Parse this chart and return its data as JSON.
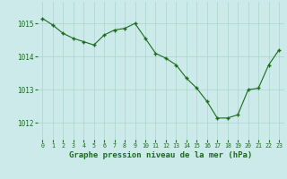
{
  "x": [
    0,
    1,
    2,
    3,
    4,
    5,
    6,
    7,
    8,
    9,
    10,
    11,
    12,
    13,
    14,
    15,
    16,
    17,
    18,
    19,
    20,
    21,
    22,
    23
  ],
  "y": [
    1015.15,
    1014.95,
    1014.7,
    1014.55,
    1014.45,
    1014.35,
    1014.65,
    1014.8,
    1014.85,
    1015.0,
    1014.55,
    1014.1,
    1013.95,
    1013.75,
    1013.35,
    1013.05,
    1012.65,
    1012.15,
    1012.15,
    1012.25,
    1013.0,
    1013.05,
    1013.75,
    1014.2
  ],
  "line_color": "#1a6b1a",
  "marker": "+",
  "marker_size": 3.5,
  "marker_lw": 1.0,
  "line_width": 0.8,
  "bg_color": "#cdeaea",
  "grid_color": "#aad4cc",
  "xlabel": "Graphe pression niveau de la mer (hPa)",
  "xlabel_color": "#1a6b1a",
  "tick_color": "#1a6b1a",
  "tick_label_color": "#1a6b1a",
  "ylim": [
    1011.5,
    1015.65
  ],
  "xlim": [
    -0.5,
    23.5
  ],
  "yticks": [
    1012,
    1013,
    1014,
    1015
  ],
  "xticks": [
    0,
    1,
    2,
    3,
    4,
    5,
    6,
    7,
    8,
    9,
    10,
    11,
    12,
    13,
    14,
    15,
    16,
    17,
    18,
    19,
    20,
    21,
    22,
    23
  ],
  "xlabel_fontsize": 6.5,
  "xtick_fontsize": 4.8,
  "ytick_fontsize": 5.5
}
